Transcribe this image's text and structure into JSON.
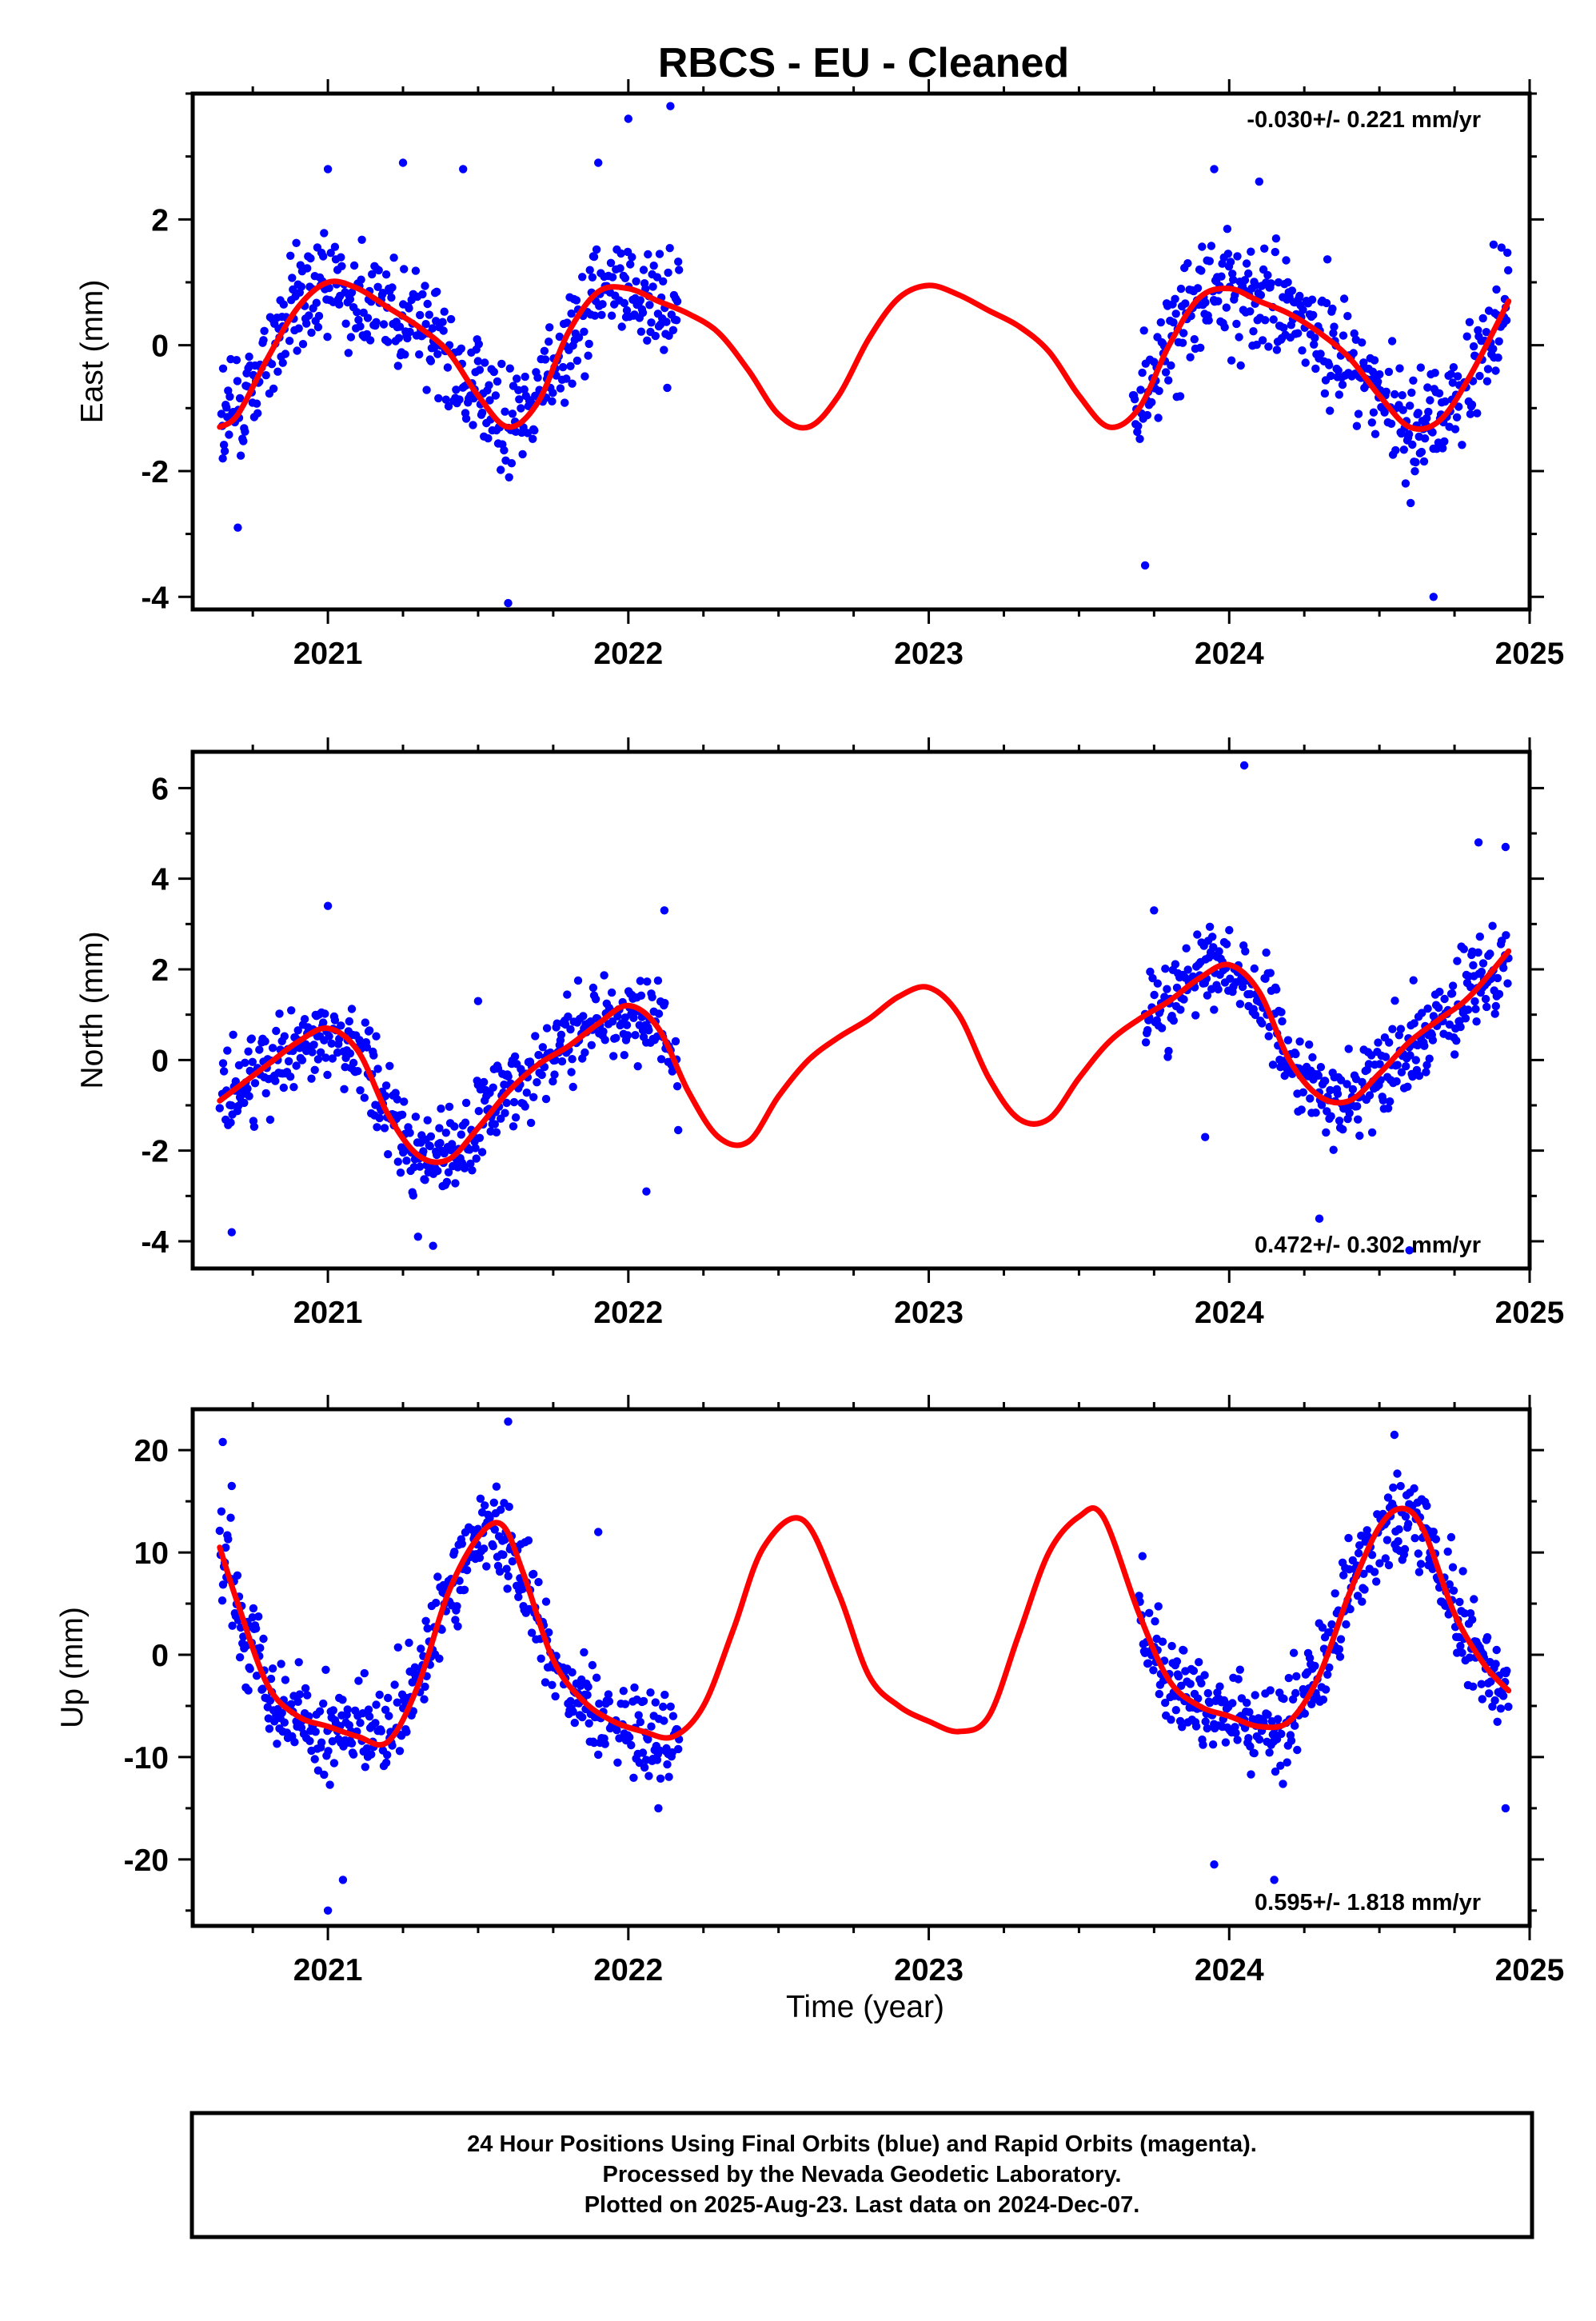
{
  "title": "RBCS  - EU - Cleaned",
  "xlabel": "Time (year)",
  "footer": [
    "24 Hour Positions Using Final Orbits (blue) and Rapid Orbits (magenta).",
    "Processed by the Nevada Geodetic Laboratory.",
    "Plotted on 2025-Aug-23. Last data on 2024-Dec-07."
  ],
  "colors": {
    "points": "#0000ff",
    "model": "#ff0000",
    "frame": "#000000"
  },
  "chart_data": [
    {
      "type": "scatter",
      "ylabel": "East (mm)",
      "rate_text": "-0.030+/- 0.221 mm/yr",
      "rate_position": "top-right",
      "xlim": [
        2020.55,
        2025.0
      ],
      "ylim": [
        -4.2,
        4.0
      ],
      "xticks": [
        "2021",
        "2022",
        "2023",
        "2024",
        "2025"
      ],
      "yticks": [
        "-4",
        "-2",
        "0",
        "2"
      ],
      "series": [
        {
          "role": "observations",
          "color": "#0000ff",
          "segments": [
            [
              2020.64,
              2022.17
            ],
            [
              2023.68,
              2024.93
            ]
          ],
          "sample_points": [
            [
              2020.65,
              -1.8
            ],
            [
              2020.7,
              -2.9
            ],
            [
              2020.85,
              0.3
            ],
            [
              2021.0,
              2.8
            ],
            [
              2021.25,
              2.9
            ],
            [
              2021.45,
              2.8
            ],
            [
              2021.6,
              -4.1
            ],
            [
              2021.9,
              2.9
            ],
            [
              2022.0,
              3.6
            ],
            [
              2022.14,
              3.8
            ],
            [
              2023.72,
              -3.5
            ],
            [
              2023.95,
              2.8
            ],
            [
              2024.1,
              2.6
            ],
            [
              2024.68,
              -4.0
            ],
            [
              2024.88,
              1.6
            ]
          ]
        },
        {
          "role": "seasonal-trend-model",
          "color": "#ff0000",
          "x": [
            2020.64,
            2020.7,
            2020.8,
            2020.9,
            2021.0,
            2021.1,
            2021.2,
            2021.3,
            2021.4,
            2021.5,
            2021.6,
            2021.7,
            2021.8,
            2021.9,
            2022.0,
            2022.1,
            2022.2,
            2022.3,
            2022.4,
            2022.5,
            2022.6,
            2022.7,
            2022.8,
            2022.9,
            2023.0,
            2023.1,
            2023.2,
            2023.3,
            2023.4,
            2023.5,
            2023.6,
            2023.7,
            2023.8,
            2023.9,
            2024.0,
            2024.1,
            2024.2,
            2024.3,
            2024.4,
            2024.5,
            2024.6,
            2024.7,
            2024.8,
            2024.93
          ],
          "y": [
            -1.3,
            -1.1,
            -0.2,
            0.6,
            1.0,
            0.9,
            0.6,
            0.3,
            -0.1,
            -0.8,
            -1.3,
            -0.9,
            0.2,
            0.85,
            0.9,
            0.7,
            0.5,
            0.2,
            -0.4,
            -1.1,
            -1.3,
            -0.8,
            0.1,
            0.75,
            0.95,
            0.8,
            0.55,
            0.3,
            -0.1,
            -0.8,
            -1.3,
            -1.0,
            0.0,
            0.75,
            0.9,
            0.7,
            0.5,
            0.2,
            -0.2,
            -0.8,
            -1.3,
            -1.2,
            -0.5,
            0.7
          ]
        }
      ]
    },
    {
      "type": "scatter",
      "ylabel": "North (mm)",
      "rate_text": "0.472+/- 0.302 mm/yr",
      "rate_position": "bottom-right",
      "xlim": [
        2020.55,
        2025.0
      ],
      "ylim": [
        -4.6,
        6.8
      ],
      "xticks": [
        "2021",
        "2022",
        "2023",
        "2024",
        "2025"
      ],
      "yticks": [
        "-4",
        "-2",
        "0",
        "2",
        "4",
        "6"
      ],
      "series": [
        {
          "role": "observations",
          "color": "#0000ff",
          "segments": [
            [
              2020.64,
              2022.17
            ],
            [
              2023.72,
              2024.93
            ]
          ],
          "sample_points": [
            [
              2020.68,
              -3.8
            ],
            [
              2021.0,
              3.4
            ],
            [
              2021.3,
              -3.9
            ],
            [
              2021.35,
              -4.1
            ],
            [
              2021.5,
              1.3
            ],
            [
              2022.06,
              -2.9
            ],
            [
              2022.12,
              3.3
            ],
            [
              2023.75,
              3.3
            ],
            [
              2023.92,
              -1.7
            ],
            [
              2024.05,
              6.5
            ],
            [
              2024.3,
              -3.5
            ],
            [
              2024.6,
              -4.2
            ],
            [
              2024.83,
              4.8
            ],
            [
              2024.92,
              4.7
            ]
          ]
        },
        {
          "role": "seasonal-trend-model",
          "color": "#ff0000",
          "x": [
            2020.64,
            2020.7,
            2020.8,
            2020.9,
            2021.0,
            2021.1,
            2021.2,
            2021.3,
            2021.4,
            2021.5,
            2021.6,
            2021.7,
            2021.8,
            2021.9,
            2022.0,
            2022.1,
            2022.2,
            2022.3,
            2022.4,
            2022.5,
            2022.6,
            2022.7,
            2022.8,
            2022.9,
            2023.0,
            2023.1,
            2023.2,
            2023.3,
            2023.4,
            2023.5,
            2023.6,
            2023.7,
            2023.8,
            2023.9,
            2024.0,
            2024.1,
            2024.2,
            2024.3,
            2024.4,
            2024.5,
            2024.6,
            2024.7,
            2024.8,
            2024.93
          ],
          "y": [
            -0.9,
            -0.6,
            -0.1,
            0.4,
            0.7,
            0.2,
            -1.2,
            -2.1,
            -2.2,
            -1.5,
            -0.7,
            -0.1,
            0.3,
            0.8,
            1.2,
            0.7,
            -0.7,
            -1.7,
            -1.8,
            -0.8,
            0.0,
            0.5,
            0.9,
            1.4,
            1.6,
            1.0,
            -0.4,
            -1.3,
            -1.3,
            -0.4,
            0.4,
            0.9,
            1.3,
            1.8,
            2.1,
            1.5,
            0.0,
            -0.8,
            -0.9,
            -0.3,
            0.4,
            0.9,
            1.4,
            2.4
          ]
        }
      ]
    },
    {
      "type": "scatter",
      "ylabel": "Up (mm)",
      "rate_text": "0.595+/- 1.818 mm/yr",
      "rate_position": "bottom-right",
      "xlim": [
        2020.55,
        2025.0
      ],
      "ylim": [
        -26.5,
        24.0
      ],
      "xticks": [
        "2021",
        "2022",
        "2023",
        "2024",
        "2025"
      ],
      "yticks": [
        "-20",
        "-10",
        "0",
        "10",
        "20"
      ],
      "series": [
        {
          "role": "observations",
          "color": "#0000ff",
          "segments": [
            [
              2020.64,
              2022.17
            ],
            [
              2023.7,
              2024.93
            ]
          ],
          "sample_points": [
            [
              2020.65,
              20.8
            ],
            [
              2020.68,
              16.5
            ],
            [
              2021.0,
              -25.0
            ],
            [
              2021.05,
              -22.0
            ],
            [
              2021.6,
              22.8
            ],
            [
              2021.9,
              12.0
            ],
            [
              2022.1,
              -15.0
            ],
            [
              2023.95,
              -20.5
            ],
            [
              2024.15,
              -22.0
            ],
            [
              2024.55,
              21.5
            ],
            [
              2024.92,
              -15.0
            ]
          ]
        },
        {
          "role": "seasonal-trend-model",
          "color": "#ff0000",
          "x": [
            2020.64,
            2020.7,
            2020.8,
            2020.9,
            2021.0,
            2021.1,
            2021.2,
            2021.3,
            2021.4,
            2021.5,
            2021.58,
            2021.65,
            2021.75,
            2021.85,
            2021.95,
            2022.05,
            2022.15,
            2022.25,
            2022.35,
            2022.45,
            2022.58,
            2022.7,
            2022.8,
            2022.9,
            2023.0,
            2023.1,
            2023.2,
            2023.3,
            2023.4,
            2023.5,
            2023.58,
            2023.7,
            2023.8,
            2023.9,
            2024.0,
            2024.1,
            2024.2,
            2024.3,
            2024.4,
            2024.5,
            2024.58,
            2024.65,
            2024.75,
            2024.85,
            2024.93
          ],
          "y": [
            10.5,
            5.0,
            -3.0,
            -6.0,
            -7.0,
            -8.0,
            -8.5,
            -3.0,
            6.0,
            11.5,
            12.7,
            8.0,
            -0.5,
            -4.5,
            -6.5,
            -7.5,
            -8.0,
            -5.0,
            2.5,
            10.5,
            13.2,
            6.0,
            -2.0,
            -5.0,
            -6.5,
            -7.5,
            -6.0,
            2.0,
            10.0,
            13.5,
            13.5,
            4.0,
            -2.5,
            -5.0,
            -6.0,
            -7.0,
            -6.5,
            -2.0,
            6.0,
            12.5,
            14.3,
            12.0,
            4.0,
            -1.0,
            -3.5
          ]
        }
      ]
    }
  ]
}
